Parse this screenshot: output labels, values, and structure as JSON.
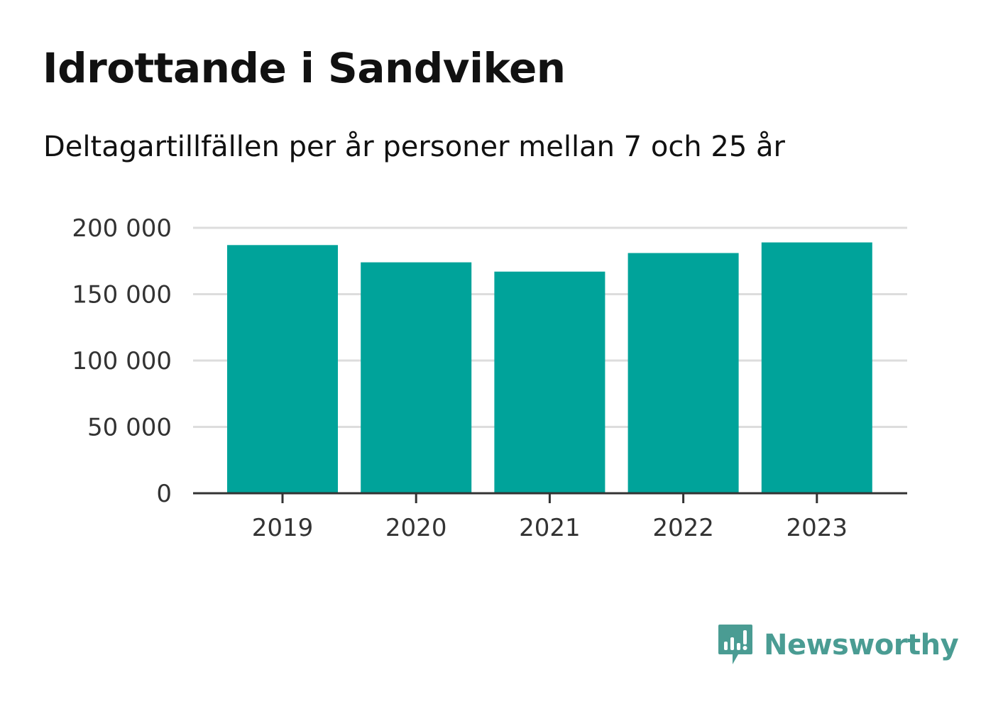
{
  "title": "Idrottande i Sandviken",
  "subtitle": "Deltagartillfällen per år personer mellan 7 och 25 år",
  "brand": {
    "name": "Newsworthy",
    "color": "#4a9c93"
  },
  "colors": {
    "bar": "#00a39a",
    "grid": "#dddddd",
    "axis": "#333333",
    "tick_text": "#333333"
  },
  "chart_data": {
    "type": "bar",
    "categories": [
      "2019",
      "2020",
      "2021",
      "2022",
      "2023"
    ],
    "values": [
      187000,
      174000,
      167000,
      181000,
      189000
    ],
    "ylim": [
      0,
      200000
    ],
    "yticks": [
      0,
      50000,
      100000,
      150000,
      200000
    ],
    "ytick_labels": [
      "0",
      "50 000",
      "100 000",
      "150 000",
      "200 000"
    ],
    "xlabel": "",
    "ylabel": "",
    "grid": true
  }
}
